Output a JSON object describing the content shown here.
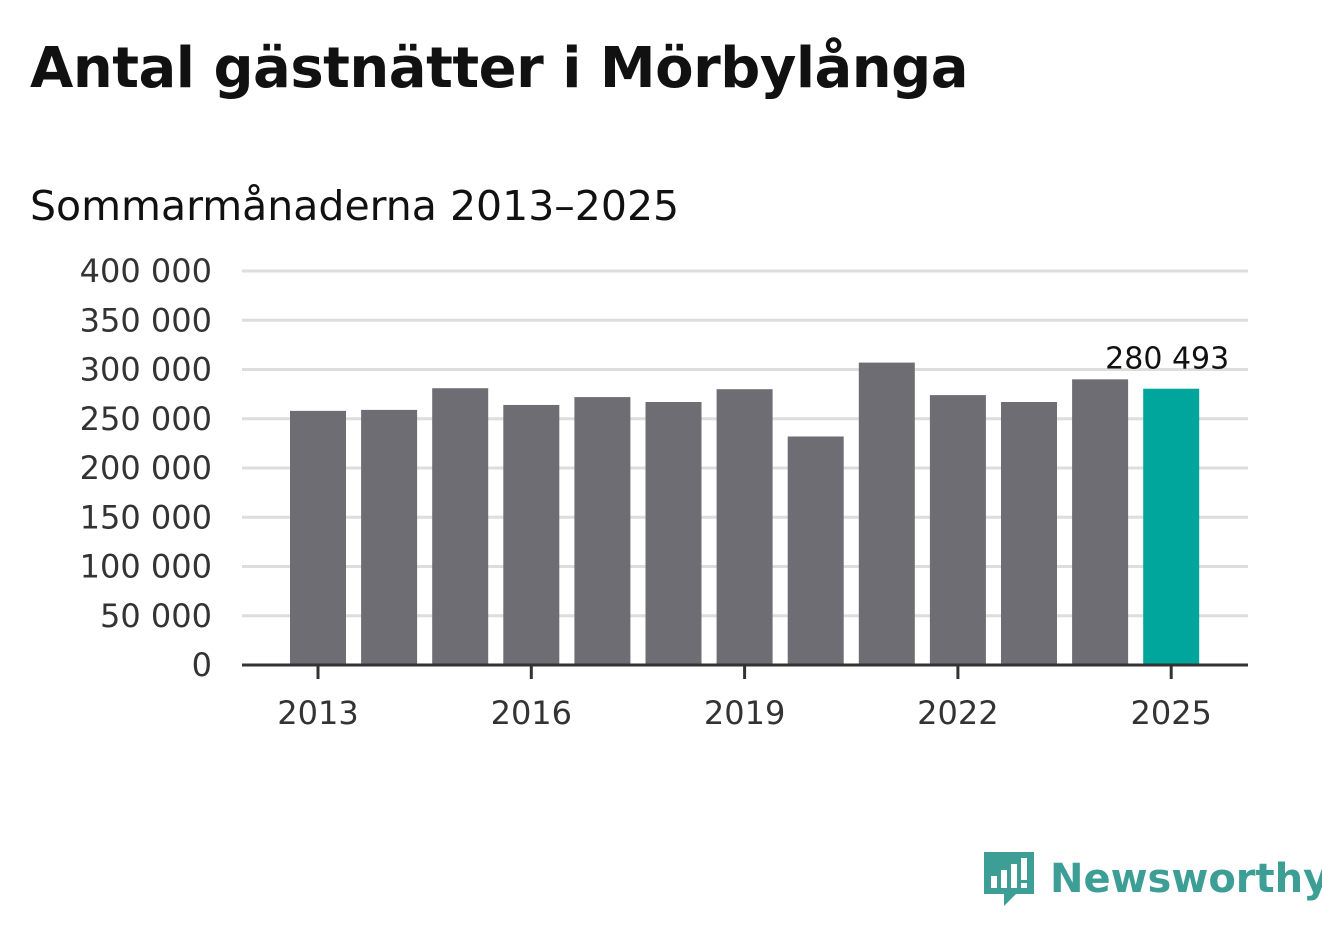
{
  "title": "Antal gästnätter i Mörbylånga",
  "subtitle": "Sommarmånaderna 2013–2025",
  "brand": {
    "name": "Newsworthy",
    "logo_icon": "newsworthy-bar-logo-icon",
    "color": "#3d9e96"
  },
  "colors": {
    "bar": "#6e6d73",
    "highlight": "#00a59b",
    "grid": "#dddddd",
    "axis": "#333333"
  },
  "chart_data": {
    "type": "bar",
    "title": "Antal gästnätter i Mörbylånga",
    "subtitle": "Sommarmånaderna 2013–2025",
    "xlabel": "",
    "ylabel": "",
    "categories": [
      "2013",
      "2014",
      "2015",
      "2016",
      "2017",
      "2018",
      "2019",
      "2020",
      "2021",
      "2022",
      "2023",
      "2024",
      "2025"
    ],
    "values": [
      258000,
      259000,
      281000,
      264000,
      272000,
      267000,
      280000,
      232000,
      307000,
      274000,
      267000,
      290000,
      280493
    ],
    "highlight_index": 12,
    "ylim": [
      0,
      400000
    ],
    "yticks": [
      0,
      50000,
      100000,
      150000,
      200000,
      250000,
      300000,
      350000,
      400000
    ],
    "ytick_labels": [
      "0",
      "50 000",
      "100 000",
      "150 000",
      "200 000",
      "250 000",
      "300 000",
      "350 000",
      "400 000"
    ],
    "xtick_labels": [
      "2013",
      "2016",
      "2019",
      "2022",
      "2025"
    ],
    "data_labels": [
      {
        "category": "2025",
        "text": "280 493"
      }
    ],
    "grid": true,
    "legend": "none"
  }
}
